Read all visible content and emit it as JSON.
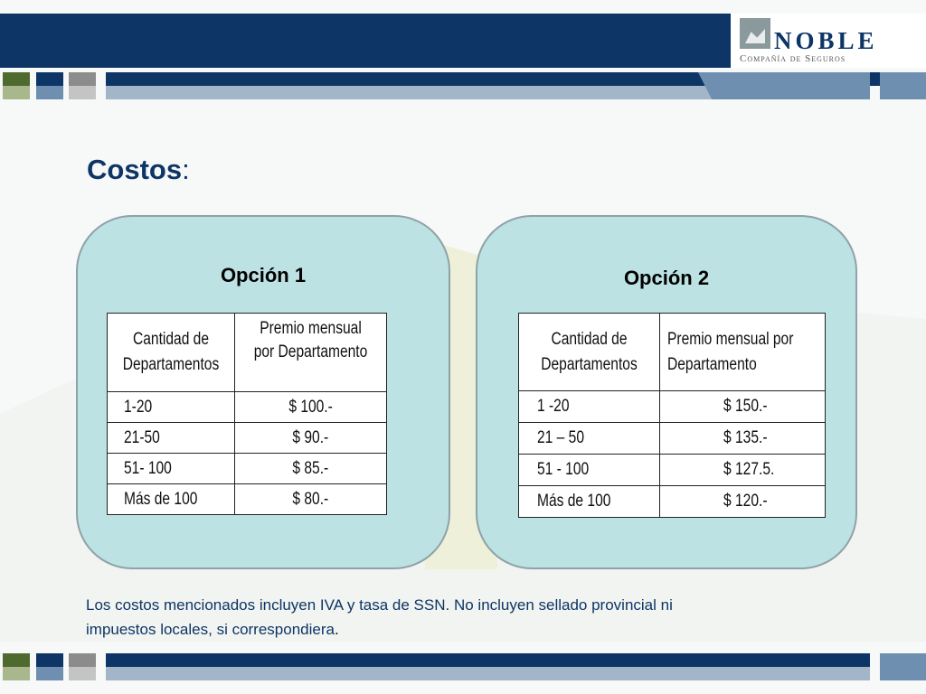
{
  "header": {
    "logo_name": "NOBLE",
    "logo_subtitle": "Compañía de Seguros",
    "colors": {
      "navy": "#0d3566",
      "steel": "#6e8fb0",
      "green": "#4f6a2e",
      "sage": "#a8b88c",
      "gray": "#a9a9a9"
    }
  },
  "page": {
    "title": "Costos",
    "title_colon": ":"
  },
  "option1": {
    "title": "Opción 1",
    "headers": [
      "Cantidad de Departamentos",
      "Premio mensual por Departamento"
    ],
    "rows": [
      [
        "1-20",
        "$ 100.-"
      ],
      [
        "21-50",
        "$ 90.-"
      ],
      [
        "51- 100",
        "$ 85.-"
      ],
      [
        "Más de 100",
        "$ 80.-"
      ]
    ]
  },
  "option2": {
    "title": "Opción 2",
    "headers": [
      "Cantidad de Departamentos",
      "Premio mensual por Departamento"
    ],
    "rows": [
      [
        "1 -20",
        "$ 150.-"
      ],
      [
        "21 – 50",
        "$ 135.-"
      ],
      [
        "51 - 100",
        "$ 127.5."
      ],
      [
        "Más de 100",
        "$ 120.-"
      ]
    ]
  },
  "note": {
    "line1": "Los costos mencionados incluyen IVA y tasa de SSN. No incluyen sellado provincial ni",
    "line2": "impuestos locales, si correspondiera",
    "line2_end": "."
  }
}
